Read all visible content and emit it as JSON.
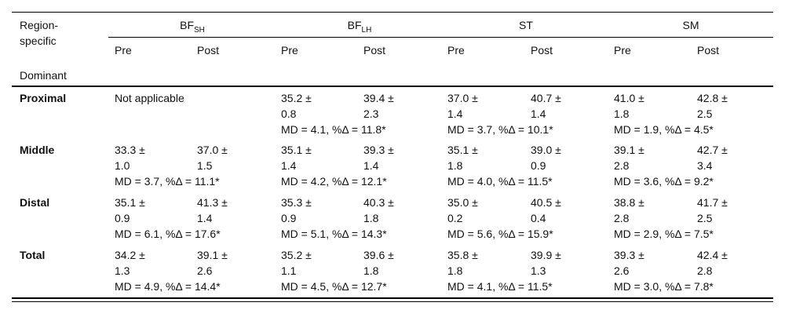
{
  "header": {
    "row_label_line1": "Region-",
    "row_label_line2": "specific",
    "row_label_line3": "Dominant",
    "groups": [
      {
        "main": "BF",
        "sub": "SH"
      },
      {
        "main": "BF",
        "sub": "LH"
      },
      {
        "main": "ST",
        "sub": ""
      },
      {
        "main": "SM",
        "sub": ""
      }
    ],
    "pre": "Pre",
    "post": "Post"
  },
  "rows": [
    {
      "label": "Proximal",
      "not_applicable": "Not applicable",
      "cells": [
        null,
        {
          "pre": [
            "35.2 ±",
            "0.8"
          ],
          "post": [
            "39.4 ±",
            "2.3"
          ],
          "md": "MD = 4.1, %Δ = 11.8*"
        },
        {
          "pre": [
            "37.0 ±",
            "1.4"
          ],
          "post": [
            "40.7 ±",
            "1.4"
          ],
          "md": "MD = 3.7, %Δ = 10.1*"
        },
        {
          "pre": [
            "41.0 ±",
            "1.8"
          ],
          "post": [
            "42.8 ±",
            "2.5"
          ],
          "md": "MD = 1.9, %Δ = 4.5*"
        }
      ]
    },
    {
      "label": "Middle",
      "cells": [
        {
          "pre": [
            "33.3 ±",
            "1.0"
          ],
          "post": [
            "37.0 ±",
            "1.5"
          ],
          "md": "MD = 3.7, %Δ = 11.1*"
        },
        {
          "pre": [
            "35.1 ±",
            "1.4"
          ],
          "post": [
            "39.3 ±",
            "1.4"
          ],
          "md": "MD = 4.2, %Δ = 12.1*"
        },
        {
          "pre": [
            "35.1 ±",
            "1.8"
          ],
          "post": [
            "39.0 ±",
            "0.9"
          ],
          "md": "MD = 4.0, %Δ = 11.5*"
        },
        {
          "pre": [
            "39.1 ±",
            "2.8"
          ],
          "post": [
            "42.7 ±",
            "3.4"
          ],
          "md": "MD = 3.6, %Δ = 9.2*"
        }
      ]
    },
    {
      "label": "Distal",
      "cells": [
        {
          "pre": [
            "35.1 ±",
            "0.9"
          ],
          "post": [
            "41.3 ±",
            "1.4"
          ],
          "md": "MD = 6.1, %Δ = 17.6*"
        },
        {
          "pre": [
            "35.3 ±",
            "0.9"
          ],
          "post": [
            "40.3 ±",
            "1.8"
          ],
          "md": "MD = 5.1, %Δ = 14.3*"
        },
        {
          "pre": [
            "35.0 ±",
            "0.2"
          ],
          "post": [
            "40.5 ±",
            "0.4"
          ],
          "md": "MD = 5.6, %Δ = 15.9*"
        },
        {
          "pre": [
            "38.8 ±",
            "2.8"
          ],
          "post": [
            "41.7 ±",
            "2.5"
          ],
          "md": "MD = 2.9, %Δ = 7.5*"
        }
      ]
    },
    {
      "label": "Total",
      "cells": [
        {
          "pre": [
            "34.2 ±",
            "1.3"
          ],
          "post": [
            "39.1 ±",
            "2.6"
          ],
          "md": "MD = 4.9, %Δ = 14.4*"
        },
        {
          "pre": [
            "35.2 ±",
            "1.1"
          ],
          "post": [
            "39.6 ±",
            "1.8"
          ],
          "md": "MD = 4.5, %Δ = 12.7*"
        },
        {
          "pre": [
            "35.8 ±",
            "1.8"
          ],
          "post": [
            "39.9 ±",
            "1.3"
          ],
          "md": "MD = 4.1, %Δ = 11.5*"
        },
        {
          "pre": [
            "39.3 ±",
            "2.6"
          ],
          "post": [
            "42.4 ±",
            "2.8"
          ],
          "md": "MD = 3.0, %Δ = 7.8*"
        }
      ]
    }
  ]
}
